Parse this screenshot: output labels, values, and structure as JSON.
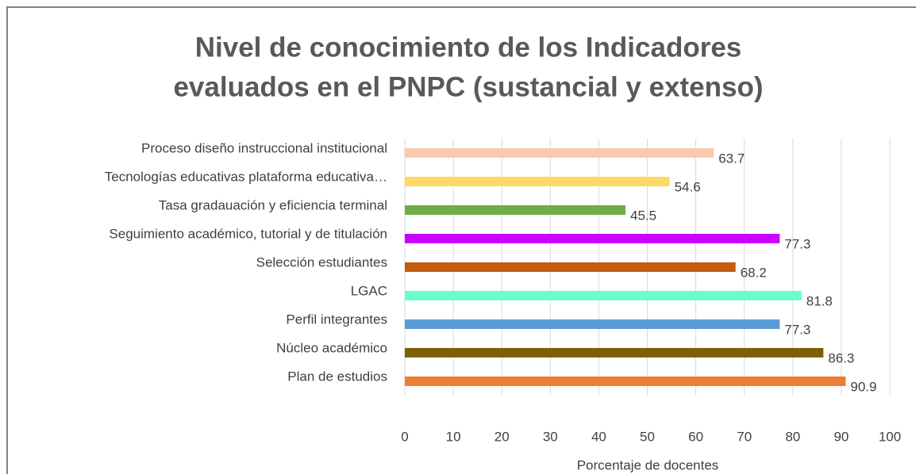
{
  "chart_data": {
    "type": "barh",
    "title": [
      "Nivel de conocimiento de los Indicadores",
      "evaluados en el PNPC (sustancial y extenso)"
    ],
    "xlabel": "Porcentaje de docentes",
    "categories": [
      "Plan de estudios",
      "Núcleo académico",
      "Perfil integrantes",
      "LGAC",
      "Selección estudiantes",
      "Seguimiento académico, tutorial y de titulación",
      "Tasa gradauación y eficiencia terminal",
      "Tecnologías educativas plataforma educativa…",
      "Proceso diseño instruccional institucional"
    ],
    "values": [
      90.9,
      86.3,
      77.3,
      81.8,
      68.2,
      77.3,
      45.5,
      54.6,
      63.7
    ],
    "colors": [
      "#ed7d31",
      "#7f6000",
      "#5b9bd5",
      "#66ffcc",
      "#c55a11",
      "#cc00ff",
      "#70ad47",
      "#ffd966",
      "#f8cbad"
    ],
    "xlim": [
      0,
      100
    ],
    "xticks": [
      0,
      10,
      20,
      30,
      40,
      50,
      60,
      70,
      80,
      90,
      100
    ],
    "grid": true
  }
}
